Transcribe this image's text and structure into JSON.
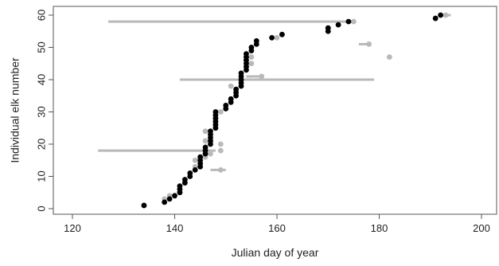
{
  "chart_data": {
    "type": "scatter",
    "title": "",
    "xlabel": "Julian day of year",
    "ylabel": "Individual elk number",
    "xlim": [
      120,
      200
    ],
    "ylim": [
      0,
      60
    ],
    "x_ticks": [
      "120",
      "140",
      "160",
      "180",
      "200"
    ],
    "y_ticks": [
      "0",
      "10",
      "20",
      "30",
      "40",
      "50",
      "60"
    ],
    "x_tick_values": [
      120,
      140,
      160,
      180,
      200
    ],
    "y_tick_values": [
      0,
      10,
      20,
      30,
      40,
      50,
      60
    ],
    "grid": false,
    "colors": {
      "point_black": "#000000",
      "point_gray": "#b9b9b9",
      "range_line": "#b9b9b9"
    },
    "ranges": [
      {
        "y": 58,
        "x_start": 127,
        "x_end": 174
      },
      {
        "y": 40,
        "x_start": 141,
        "x_end": 179
      },
      {
        "y": 18,
        "x_start": 125,
        "x_end": 148
      },
      {
        "y": 12,
        "x_start": 147,
        "x_end": 150
      },
      {
        "y": 51,
        "x_start": 176,
        "x_end": 178
      },
      {
        "y": 60,
        "x_start": 192,
        "x_end": 194
      },
      {
        "y": 41,
        "x_start": 154,
        "x_end": 157
      }
    ],
    "gray_points": [
      {
        "x": 134,
        "y": 1
      },
      {
        "x": 138,
        "y": 3
      },
      {
        "x": 139,
        "y": 4
      },
      {
        "x": 141,
        "y": 5
      },
      {
        "x": 141,
        "y": 6
      },
      {
        "x": 142,
        "y": 8
      },
      {
        "x": 144,
        "y": 13
      },
      {
        "x": 144,
        "y": 15
      },
      {
        "x": 146,
        "y": 16
      },
      {
        "x": 147,
        "y": 17
      },
      {
        "x": 146,
        "y": 21
      },
      {
        "x": 146,
        "y": 24
      },
      {
        "x": 148,
        "y": 28
      },
      {
        "x": 149,
        "y": 30
      },
      {
        "x": 150,
        "y": 32
      },
      {
        "x": 151,
        "y": 34
      },
      {
        "x": 151,
        "y": 38
      },
      {
        "x": 154,
        "y": 44
      },
      {
        "x": 155,
        "y": 45
      },
      {
        "x": 155,
        "y": 47
      },
      {
        "x": 156,
        "y": 52
      },
      {
        "x": 160,
        "y": 53
      },
      {
        "x": 170,
        "y": 56
      },
      {
        "x": 175,
        "y": 58
      },
      {
        "x": 178,
        "y": 51
      },
      {
        "x": 182,
        "y": 47
      },
      {
        "x": 191,
        "y": 59
      },
      {
        "x": 193,
        "y": 60
      },
      {
        "x": 157,
        "y": 41
      },
      {
        "x": 149,
        "y": 12
      },
      {
        "x": 149,
        "y": 18
      },
      {
        "x": 149,
        "y": 20
      }
    ],
    "black_points": [
      {
        "x": 134,
        "y": 1
      },
      {
        "x": 138,
        "y": 2
      },
      {
        "x": 139,
        "y": 3
      },
      {
        "x": 140,
        "y": 4
      },
      {
        "x": 141,
        "y": 5
      },
      {
        "x": 141,
        "y": 6
      },
      {
        "x": 141,
        "y": 7
      },
      {
        "x": 142,
        "y": 8
      },
      {
        "x": 142,
        "y": 9
      },
      {
        "x": 143,
        "y": 10
      },
      {
        "x": 143,
        "y": 11
      },
      {
        "x": 144,
        "y": 12
      },
      {
        "x": 145,
        "y": 13
      },
      {
        "x": 145,
        "y": 14
      },
      {
        "x": 145,
        "y": 15
      },
      {
        "x": 145,
        "y": 16
      },
      {
        "x": 146,
        "y": 17
      },
      {
        "x": 146,
        "y": 18
      },
      {
        "x": 146,
        "y": 19
      },
      {
        "x": 147,
        "y": 20
      },
      {
        "x": 147,
        "y": 21
      },
      {
        "x": 147,
        "y": 22
      },
      {
        "x": 147,
        "y": 23
      },
      {
        "x": 147,
        "y": 24
      },
      {
        "x": 148,
        "y": 25
      },
      {
        "x": 148,
        "y": 26
      },
      {
        "x": 148,
        "y": 27
      },
      {
        "x": 148,
        "y": 28
      },
      {
        "x": 148,
        "y": 29
      },
      {
        "x": 148,
        "y": 30
      },
      {
        "x": 150,
        "y": 31
      },
      {
        "x": 150,
        "y": 32
      },
      {
        "x": 151,
        "y": 33
      },
      {
        "x": 151,
        "y": 34
      },
      {
        "x": 152,
        "y": 35
      },
      {
        "x": 152,
        "y": 36
      },
      {
        "x": 152,
        "y": 37
      },
      {
        "x": 153,
        "y": 38
      },
      {
        "x": 153,
        "y": 39
      },
      {
        "x": 153,
        "y": 40
      },
      {
        "x": 153,
        "y": 41
      },
      {
        "x": 153,
        "y": 42
      },
      {
        "x": 154,
        "y": 43
      },
      {
        "x": 154,
        "y": 44
      },
      {
        "x": 154,
        "y": 45
      },
      {
        "x": 154,
        "y": 46
      },
      {
        "x": 154,
        "y": 47
      },
      {
        "x": 154,
        "y": 48
      },
      {
        "x": 155,
        "y": 49
      },
      {
        "x": 155,
        "y": 50
      },
      {
        "x": 156,
        "y": 51
      },
      {
        "x": 156,
        "y": 52
      },
      {
        "x": 159,
        "y": 53
      },
      {
        "x": 161,
        "y": 54
      },
      {
        "x": 170,
        "y": 55
      },
      {
        "x": 170,
        "y": 56
      },
      {
        "x": 172,
        "y": 57
      },
      {
        "x": 174,
        "y": 58
      },
      {
        "x": 191,
        "y": 59
      },
      {
        "x": 192,
        "y": 60
      }
    ]
  }
}
